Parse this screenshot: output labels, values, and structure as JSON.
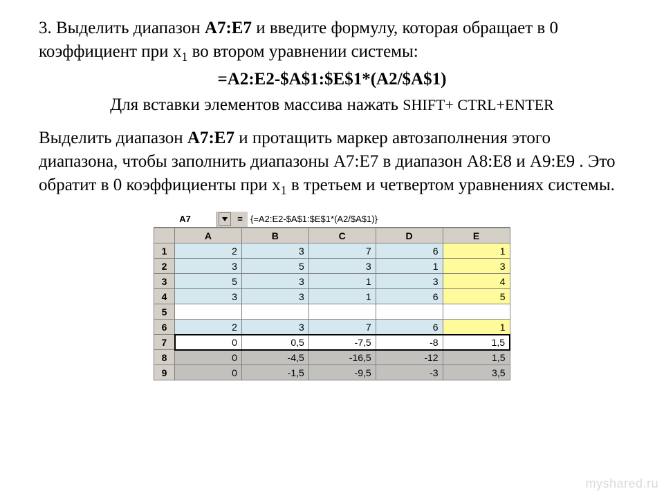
{
  "text": {
    "p1a": "3. Выделить диапазон ",
    "p1b": "A7:E7",
    "p1c": "  и введите формулу, которая обращает в 0 коэффициент при ",
    "p1d": "x",
    "p1e": " во втором уравнении системы:",
    "sub1": "1",
    "formula": "=A2:E2-$A$1:$E$1*(A2/$A$1)",
    "p2a": "Для вставки элементов массива нажать ",
    "p2b": "SHIFT+ CTRL+ENTER",
    "p3a": "Выделить диапазон ",
    "p3b": "A7:E7",
    "p3c": " и протащить маркер автозаполнения этого диапазона, чтобы заполнить диапазоны  A7:E7 в диапазон A8:E8 и A9:E9 ",
    "p3d": ".",
    "p3e": " Это обратит в 0 коэффициенты при ",
    "p3f": "x",
    "p3g": " в третьем и  четвертом уравнениях системы.",
    "sub2": "1"
  },
  "sheet": {
    "nameBox": "A7",
    "eq": "=",
    "formula": "{=A2:E2-$A$1:$E$1*(A2/$A$1)}",
    "colHeaders": [
      "A",
      "B",
      "C",
      "D",
      "E"
    ],
    "rows": [
      {
        "h": "1",
        "cells": [
          "2",
          "3",
          "7",
          "6",
          "1"
        ],
        "styles": [
          "cy",
          "cy",
          "cy",
          "cy",
          "ye"
        ]
      },
      {
        "h": "2",
        "cells": [
          "3",
          "5",
          "3",
          "1",
          "3"
        ],
        "styles": [
          "cy",
          "cy",
          "cy",
          "cy",
          "ye"
        ]
      },
      {
        "h": "3",
        "cells": [
          "5",
          "3",
          "1",
          "3",
          "4"
        ],
        "styles": [
          "cy",
          "cy",
          "cy",
          "cy",
          "ye"
        ]
      },
      {
        "h": "4",
        "cells": [
          "3",
          "3",
          "1",
          "6",
          "5"
        ],
        "styles": [
          "cy",
          "cy",
          "cy",
          "cy",
          "ye"
        ]
      },
      {
        "h": "5",
        "cells": [
          "",
          "",
          "",
          "",
          ""
        ],
        "styles": [
          "wh",
          "wh",
          "wh",
          "wh",
          "wh"
        ]
      },
      {
        "h": "6",
        "cells": [
          "2",
          "3",
          "7",
          "6",
          "1"
        ],
        "styles": [
          "cy",
          "cy",
          "cy",
          "cy",
          "ye"
        ]
      },
      {
        "h": "7",
        "cells": [
          "0",
          "0,5",
          "-7,5",
          "-8",
          "1,5"
        ],
        "styles": [
          "sel",
          "sel",
          "sel",
          "sel",
          "sel"
        ],
        "selected": true
      },
      {
        "h": "8",
        "cells": [
          "0",
          "-4,5",
          "-16,5",
          "-12",
          "1,5"
        ],
        "styles": [
          "gr",
          "gr",
          "gr",
          "gr",
          "gr"
        ]
      },
      {
        "h": "9",
        "cells": [
          "0",
          "-1,5",
          "-9,5",
          "-3",
          "3,5"
        ],
        "styles": [
          "gr",
          "gr",
          "gr",
          "gr",
          "gr"
        ]
      }
    ],
    "colors": {
      "header_bg": "#d4d0c8",
      "cyan_bg": "#d5e8ef",
      "yellow_bg": "#fffb9c",
      "grey_bg": "#c2c1be",
      "border": "#808080",
      "sel_border": "#000000"
    }
  },
  "watermark": "myshared.ru"
}
